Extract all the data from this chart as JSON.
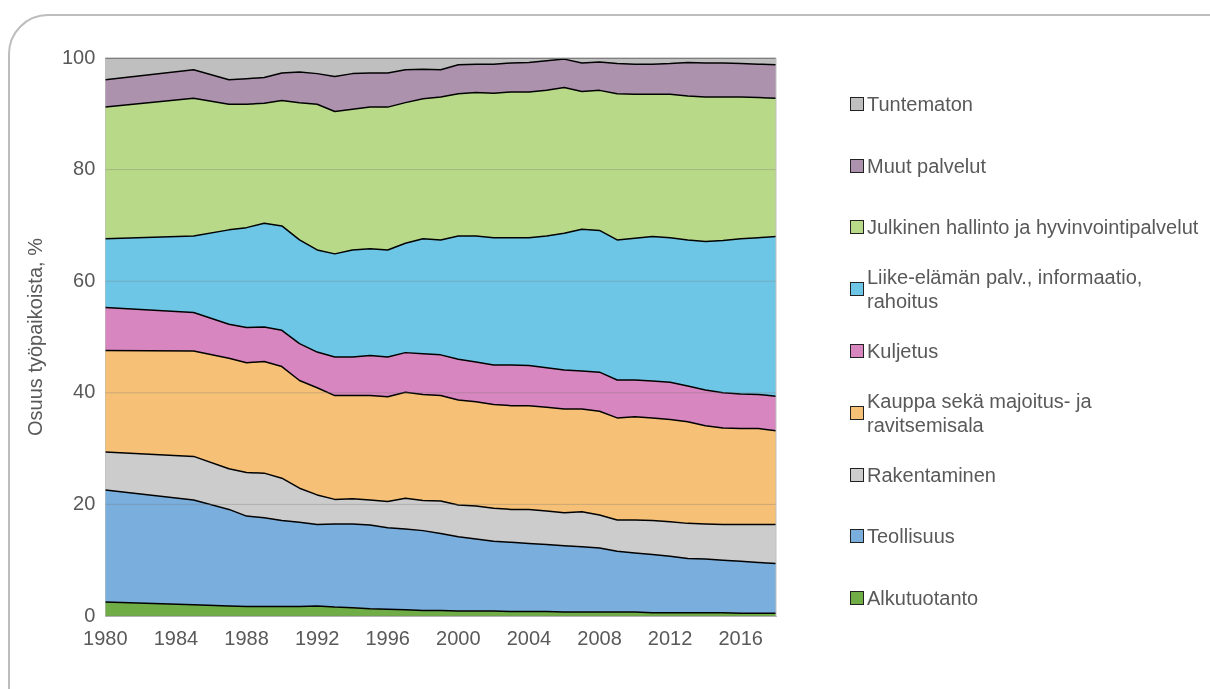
{
  "chart_data": {
    "type": "area",
    "stacked": true,
    "ylabel": "Osuus työpaikoista, %",
    "legend": "right",
    "grid": "y",
    "x": [
      1980,
      1985,
      1987,
      1988,
      1989,
      1990,
      1991,
      1992,
      1993,
      1994,
      1995,
      1996,
      1997,
      1998,
      1999,
      2000,
      2001,
      2002,
      2003,
      2004,
      2005,
      2006,
      2007,
      2008,
      2009,
      2010,
      2011,
      2012,
      2013,
      2014,
      2015,
      2016,
      2017,
      2018
    ],
    "xlim": [
      1980,
      2018
    ],
    "xticks": [
      1980,
      1984,
      1988,
      1992,
      1996,
      2000,
      2004,
      2008,
      2012,
      2016
    ],
    "ylim": [
      0,
      100
    ],
    "yticks": [
      0,
      20,
      40,
      60,
      80,
      100
    ],
    "series": [
      {
        "name": "Alkutuotanto",
        "color": "#70ad47",
        "values": [
          2.5,
          2.0,
          1.8,
          1.7,
          1.7,
          1.7,
          1.7,
          1.8,
          1.6,
          1.5,
          1.3,
          1.2,
          1.1,
          1.0,
          1.0,
          0.9,
          0.9,
          0.9,
          0.8,
          0.8,
          0.8,
          0.7,
          0.7,
          0.7,
          0.7,
          0.7,
          0.6,
          0.6,
          0.6,
          0.6,
          0.6,
          0.5,
          0.5,
          0.5
        ]
      },
      {
        "name": "Teollisuus",
        "color": "#7aaedc",
        "values": [
          20.1,
          18.8,
          17.3,
          16.2,
          15.9,
          15.4,
          15.1,
          14.6,
          14.9,
          15.0,
          15.0,
          14.6,
          14.5,
          14.3,
          13.8,
          13.3,
          12.9,
          12.5,
          12.4,
          12.2,
          12.0,
          11.9,
          11.7,
          11.5,
          10.9,
          10.6,
          10.4,
          10.1,
          9.7,
          9.6,
          9.4,
          9.3,
          9.1,
          8.9
        ]
      },
      {
        "name": "Rakentaminen",
        "color": "#cccccc",
        "values": [
          6.8,
          7.8,
          7.3,
          7.8,
          8.0,
          7.6,
          6.1,
          5.3,
          4.4,
          4.5,
          4.5,
          4.7,
          5.5,
          5.4,
          5.8,
          5.7,
          5.9,
          5.9,
          5.9,
          6.1,
          6.0,
          5.9,
          6.3,
          5.9,
          5.6,
          5.9,
          6.1,
          6.2,
          6.3,
          6.3,
          6.4,
          6.6,
          6.8,
          7.0
        ]
      },
      {
        "name": "Kauppa sekä majoitus- ja ravitsemisala",
        "color": "#f6c177",
        "values": [
          18.2,
          18.9,
          19.8,
          19.7,
          20.0,
          20.0,
          19.3,
          19.2,
          18.6,
          18.5,
          18.7,
          18.8,
          19.0,
          19.0,
          18.9,
          18.8,
          18.7,
          18.6,
          18.6,
          18.6,
          18.6,
          18.6,
          18.4,
          18.6,
          18.3,
          18.5,
          18.4,
          18.3,
          18.2,
          17.6,
          17.3,
          17.2,
          17.2,
          16.8
        ]
      },
      {
        "name": "Kuljetus",
        "color": "#d886bf",
        "values": [
          7.7,
          6.9,
          6.1,
          6.3,
          6.2,
          6.5,
          6.6,
          6.4,
          6.9,
          6.9,
          7.2,
          7.1,
          7.1,
          7.3,
          7.3,
          7.3,
          7.1,
          7.1,
          7.3,
          7.2,
          7.1,
          7.0,
          6.8,
          7.0,
          6.8,
          6.6,
          6.6,
          6.7,
          6.4,
          6.4,
          6.3,
          6.2,
          6.1,
          6.2
        ]
      },
      {
        "name": "Liike-elämän palv., informaatio, rahoitus",
        "color": "#6ec6e6",
        "values": [
          12.3,
          13.7,
          16.9,
          17.9,
          18.6,
          18.7,
          18.6,
          18.3,
          18.5,
          19.2,
          19.1,
          19.2,
          19.6,
          20.6,
          20.6,
          22.1,
          22.6,
          22.8,
          22.8,
          22.9,
          23.6,
          24.5,
          25.4,
          25.4,
          25.1,
          25.4,
          25.9,
          25.9,
          26.2,
          26.6,
          27.3,
          27.8,
          28.1,
          28.6
        ]
      },
      {
        "name": "Julkinen hallinto ja hyvinvointipalvelut",
        "color": "#b8d987",
        "values": [
          23.6,
          24.7,
          22.5,
          22.1,
          21.5,
          22.5,
          24.6,
          26.1,
          25.5,
          25.2,
          25.4,
          25.6,
          25.2,
          25.1,
          25.6,
          25.5,
          25.7,
          25.9,
          26.1,
          26.1,
          26.1,
          26.1,
          24.7,
          25.1,
          26.2,
          25.8,
          25.5,
          25.7,
          25.8,
          25.9,
          25.7,
          25.4,
          25.1,
          24.8
        ]
      },
      {
        "name": "Muut palvelut",
        "color": "#ad92ad",
        "values": [
          4.9,
          5.1,
          4.4,
          4.6,
          4.6,
          4.9,
          5.5,
          5.5,
          6.3,
          6.4,
          6.1,
          6.1,
          5.9,
          5.3,
          4.9,
          5.2,
          5.1,
          5.2,
          5.2,
          5.3,
          5.3,
          5.1,
          5.1,
          5.1,
          5.4,
          5.4,
          5.4,
          5.5,
          6.0,
          6.1,
          6.1,
          6.0,
          6.0,
          6.0
        ]
      },
      {
        "name": "Tuntematon",
        "color": "#bfbfbf",
        "values": [
          3.9,
          2.1,
          3.9,
          3.7,
          3.5,
          2.7,
          2.5,
          2.8,
          3.3,
          2.8,
          2.7,
          2.7,
          2.1,
          2.0,
          2.1,
          1.2,
          1.1,
          1.1,
          0.9,
          0.8,
          0.5,
          0.2,
          0.9,
          0.7,
          1.0,
          1.1,
          1.1,
          1.0,
          0.8,
          0.9,
          0.9,
          1.0,
          1.1,
          1.2
        ]
      }
    ]
  }
}
